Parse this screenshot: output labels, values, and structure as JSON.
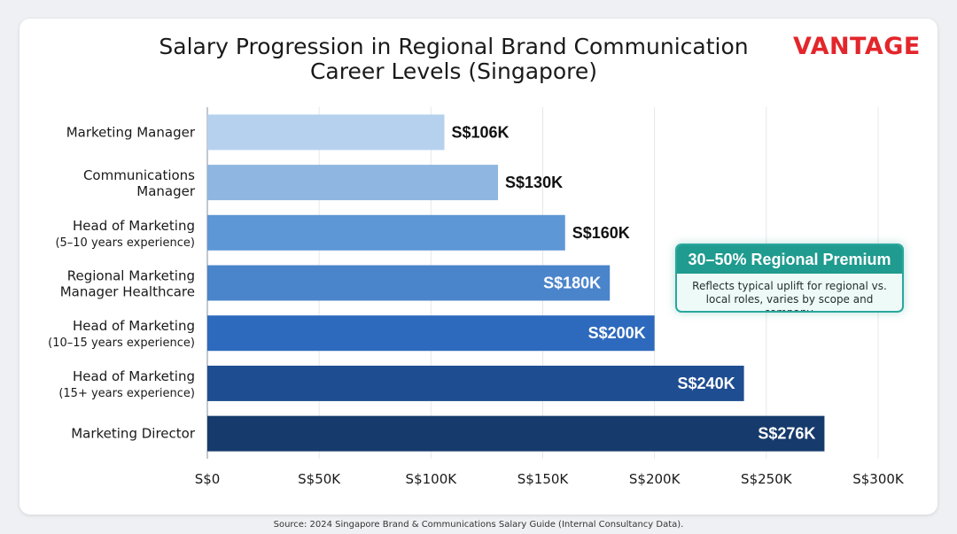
{
  "brand": {
    "logo_text": "VANTAGE",
    "logo_color": "#e3262b"
  },
  "footer": {
    "source": "Source: 2024 Singapore Brand & Communications Salary Guide (Internal Consultancy Data)."
  },
  "callout": {
    "title": "30–50% Regional Premium",
    "body": "Reflects typical uplift for regional vs. local roles, varies by scope and company.",
    "accent": "#1f9b8f"
  },
  "chart_data": {
    "type": "bar",
    "orientation": "horizontal",
    "title": "Salary Progression in Regional Brand Communication Career Levels (Singapore)",
    "title_lines": [
      "Salary Progression in Regional Brand Communication",
      "Career Levels (Singapore)"
    ],
    "categories": [
      [
        "Marketing Manager"
      ],
      [
        "Communications",
        "Manager"
      ],
      [
        "Head of Marketing",
        "(5–10 years experience)"
      ],
      [
        "Regional Marketing",
        "Manager Healthcare"
      ],
      [
        "Head of Marketing",
        "(10–15 years experience)"
      ],
      [
        "Head of Marketing",
        "(15+ years experience)"
      ],
      [
        "Marketing Director"
      ]
    ],
    "values": [
      106,
      130,
      160,
      180,
      200,
      240,
      276
    ],
    "value_labels": [
      "S$106K",
      "S$130K",
      "S$160K",
      "S$180K",
      "S$200K",
      "S$240K",
      "S$276K"
    ],
    "value_unit": "S$ thousands",
    "bar_colors": [
      "#b6d1ee",
      "#8fb6e1",
      "#5d97d6",
      "#4a84cb",
      "#2d6abd",
      "#1f4d91",
      "#163a6b"
    ],
    "xlim": [
      0,
      300
    ],
    "xticks": [
      0,
      50,
      100,
      150,
      200,
      250,
      300
    ],
    "xtick_labels": [
      "S$0",
      "S$50K",
      "S$100K",
      "S$150K",
      "S$200K",
      "S$250K",
      "S$300K"
    ],
    "grid": true,
    "legend": "none",
    "xlabel": "",
    "ylabel": ""
  }
}
